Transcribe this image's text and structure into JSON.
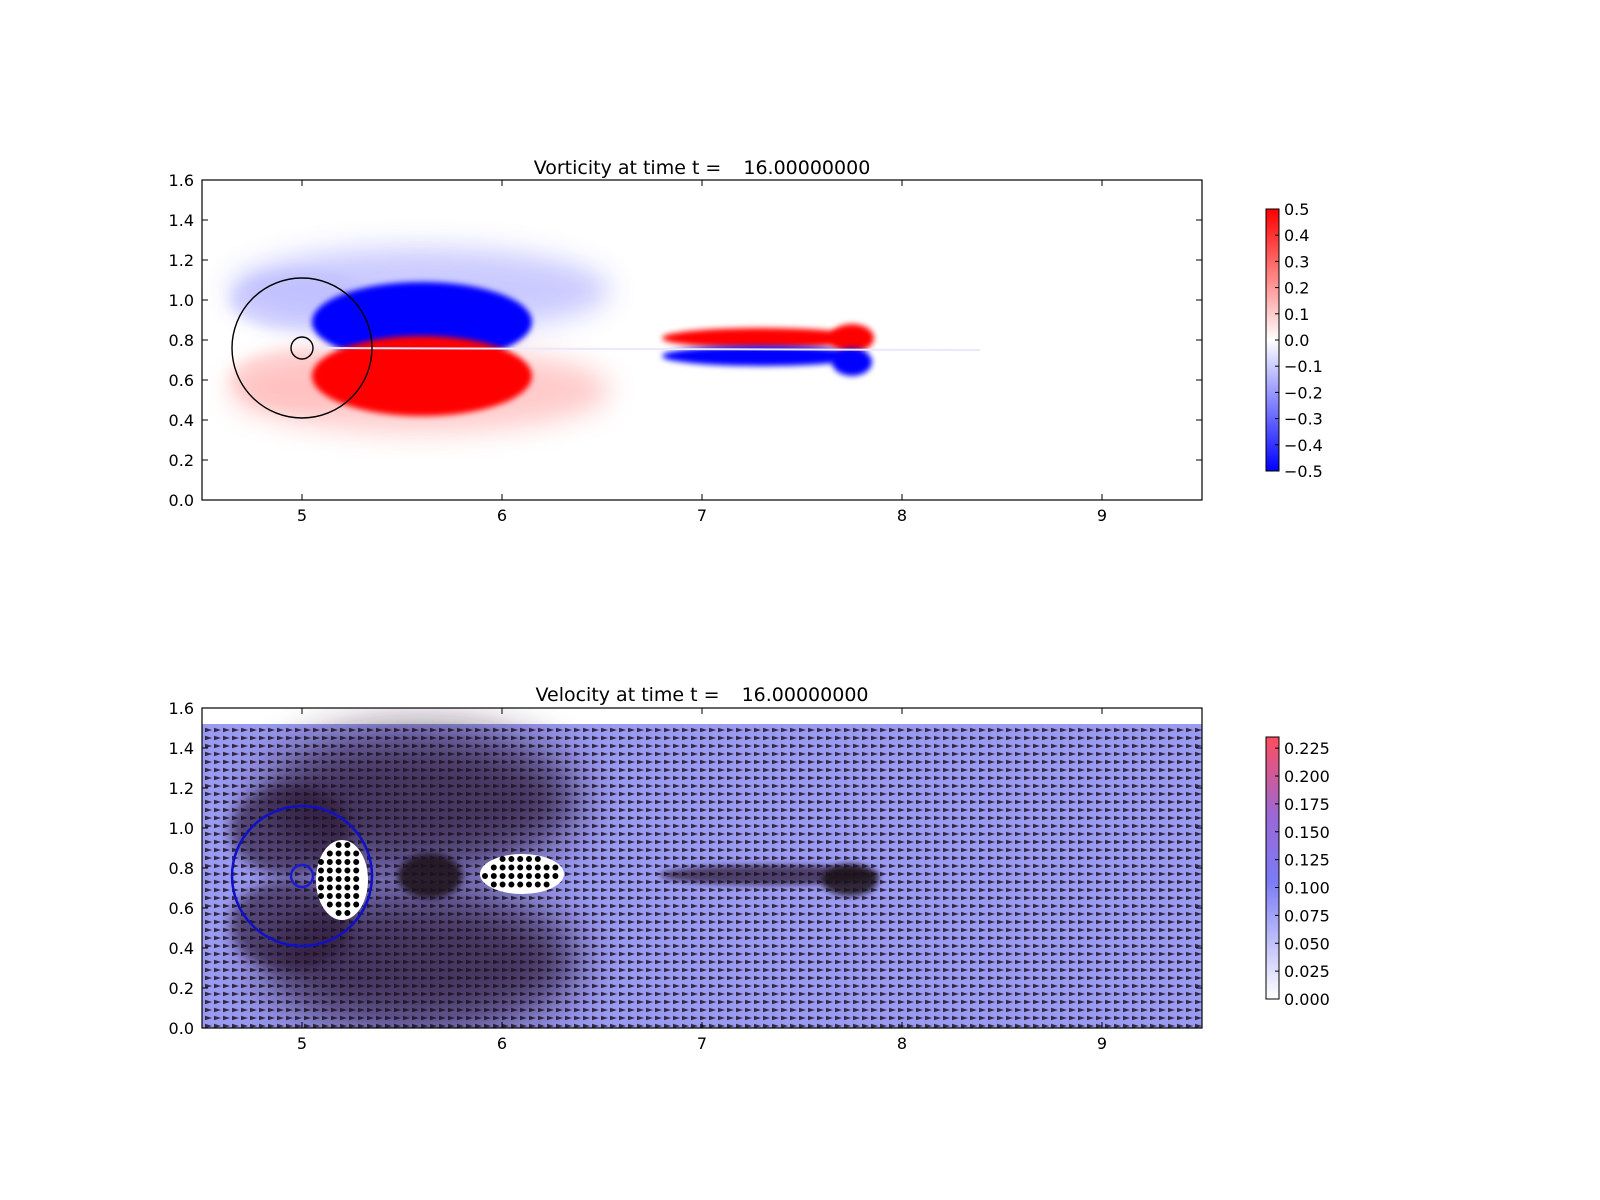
{
  "chart_data": [
    {
      "type": "heatmap",
      "title_prefix": "Vorticity at time t =",
      "title_time": "16.00000000",
      "xlim": [
        4.5,
        9.5
      ],
      "ylim": [
        0.0,
        1.6
      ],
      "xticks": [
        "5",
        "6",
        "7",
        "8",
        "9"
      ],
      "yticks": [
        "0.0",
        "0.2",
        "0.4",
        "0.6",
        "0.8",
        "1.0",
        "1.2",
        "1.4",
        "1.6"
      ],
      "grid": false,
      "colormap": [
        "#0000ff",
        "#ffffff",
        "#ff0000"
      ],
      "colorbar": {
        "range": [
          -0.5,
          0.5
        ],
        "ticks": [
          "−0.5",
          "−0.4",
          "−0.3",
          "−0.2",
          "−0.1",
          "0.0",
          "0.1",
          "0.2",
          "0.3",
          "0.4",
          "0.5"
        ]
      },
      "cylinder": {
        "center": [
          5.0,
          0.76
        ],
        "radius": 0.055,
        "color": "#000000"
      },
      "inflow_circle": {
        "center": [
          5.0,
          0.76
        ],
        "radius": 0.35,
        "color": "#000000"
      },
      "vortices": [
        {
          "sign": -1,
          "center": [
            5.6,
            0.89
          ],
          "rx": 0.55,
          "ry": 0.2
        },
        {
          "sign": 1,
          "center": [
            5.6,
            0.62
          ],
          "rx": 0.55,
          "ry": 0.2
        },
        {
          "sign": 1,
          "center": [
            7.3,
            0.81
          ],
          "rx": 0.5,
          "ry": 0.05
        },
        {
          "sign": -1,
          "center": [
            7.3,
            0.72
          ],
          "rx": 0.5,
          "ry": 0.05
        },
        {
          "sign": 1,
          "center": [
            7.75,
            0.81
          ],
          "rx": 0.11,
          "ry": 0.07
        },
        {
          "sign": -1,
          "center": [
            7.75,
            0.69
          ],
          "rx": 0.1,
          "ry": 0.07
        }
      ]
    },
    {
      "type": "quiver",
      "title_prefix": "Velocity at time t =",
      "title_time": "16.00000000",
      "xlim": [
        4.5,
        9.5
      ],
      "ylim": [
        0.0,
        1.6
      ],
      "xticks": [
        "5",
        "6",
        "7",
        "8",
        "9"
      ],
      "yticks": [
        "0.0",
        "0.2",
        "0.4",
        "0.6",
        "0.8",
        "1.0",
        "1.2",
        "1.4",
        "1.6"
      ],
      "grid": false,
      "field_top": 1.52,
      "background_color": "#9a9af0",
      "colormap": [
        "#ffffff",
        "#7b7bf5",
        "#ff4d5e"
      ],
      "colorbar": {
        "range": [
          0.0,
          0.235
        ],
        "ticks": [
          "0.000",
          "0.025",
          "0.050",
          "0.075",
          "0.100",
          "0.125",
          "0.150",
          "0.175",
          "0.200",
          "0.225"
        ]
      },
      "cylinder": {
        "center": [
          5.0,
          0.76
        ],
        "radius": 0.055,
        "color": "#1c1ccc"
      },
      "inflow_circle": {
        "center": [
          5.0,
          0.76
        ],
        "radius": 0.35,
        "color": "#1010c8"
      },
      "stagnant_regions": [
        {
          "center": [
            5.2,
            0.74
          ],
          "rx": 0.13,
          "ry": 0.2
        },
        {
          "center": [
            6.1,
            0.77
          ],
          "rx": 0.21,
          "ry": 0.1
        }
      ]
    }
  ]
}
